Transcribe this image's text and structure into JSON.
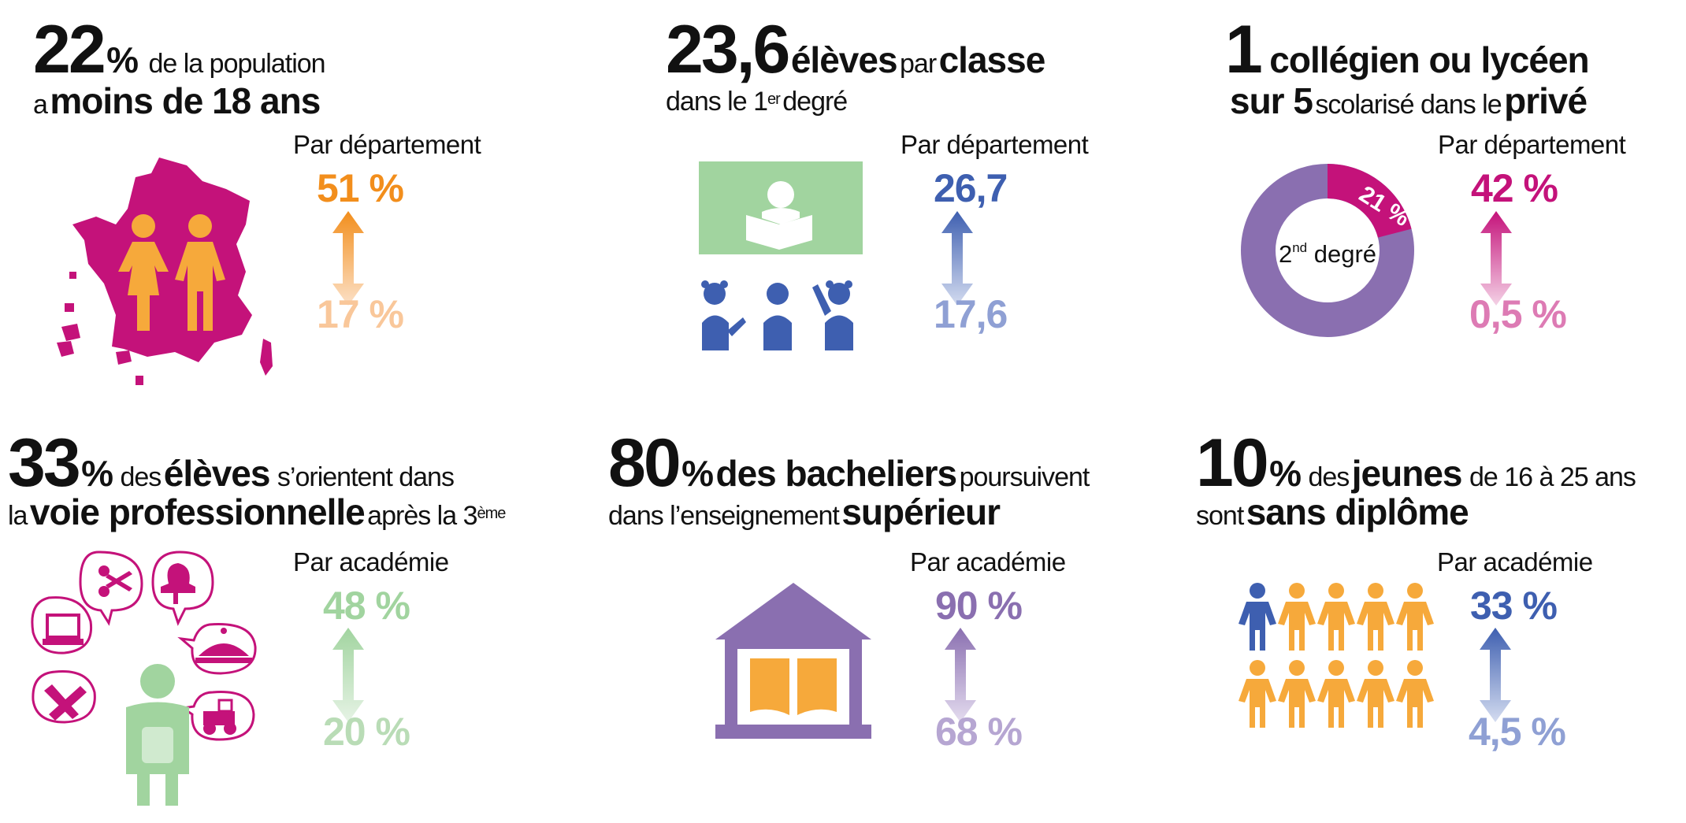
{
  "colors": {
    "magenta": "#c4127a",
    "magenta_light": "#dd7bb4",
    "orange": "#f28e1c",
    "orange_light": "#f9c79a",
    "blue": "#3e5fb0",
    "blue_light": "#8fa0d4",
    "green": "#a1d49f",
    "green_light": "#b9dcb6",
    "purple": "#8a6fb0",
    "purple_light": "#b6a6d2",
    "person_orange": "#f6a93b"
  },
  "panels": [
    {
      "id": "population",
      "headline": {
        "big": "22",
        "pct": "%",
        "rest1": "de la population",
        "line2_pre": "a",
        "line2_bold": "moins de 18 ans"
      },
      "range_label": "Par département",
      "high": "51 %",
      "low": "17 %",
      "icon": "france-map-children-icon"
    },
    {
      "id": "classe",
      "headline": {
        "big": "23,6",
        "b1": "élèves",
        "n1": "par",
        "b2": "classe",
        "line2_pre": "dans le 1",
        "line2_sup": "er",
        "line2_post": "degré"
      },
      "range_label": "Par département",
      "high": "26,7",
      "low": "17,6",
      "icon": "classroom-icon"
    },
    {
      "id": "prive",
      "headline": {
        "big": "1",
        "b1": "collégien ou lycéen",
        "line2_bold": "sur 5",
        "line2_norm": "scolarisé dans le",
        "line2_bold2": "privé"
      },
      "range_label": "Par département",
      "high": "42 %",
      "low": "0,5 %",
      "donut": {
        "slice_label": "21 %",
        "slice_fraction": 0.21,
        "center_pre": "2",
        "center_sup": "nd",
        "center_post": "degré"
      }
    },
    {
      "id": "pro",
      "headline": {
        "big": "33",
        "pct": "%",
        "n1": "des",
        "b1": "élèves",
        "n2": "s’orientent dans",
        "line2_pre": "la",
        "line2_bold": "voie professionnelle",
        "line2_norm": "après la 3",
        "line2_sup": "ème"
      },
      "range_label": "Par académie",
      "high": "48 %",
      "low": "20 %",
      "icon": "student-career-bubbles-icon"
    },
    {
      "id": "sup",
      "headline": {
        "big": "80",
        "pct": "%",
        "b1": "des bacheliers",
        "n1": "poursuivent",
        "line2_norm": "dans l’enseignement",
        "line2_bold": "supérieur"
      },
      "range_label": "Par académie",
      "high": "90 %",
      "low": "68 %",
      "icon": "university-book-icon"
    },
    {
      "id": "diplome",
      "headline": {
        "big": "10",
        "pct": "%",
        "n1": "des",
        "b1": "jeunes",
        "n2": "de 16 à 25 ans",
        "line2_norm": "sont",
        "line2_bold": "sans diplôme"
      },
      "range_label": "Par académie",
      "high": "33 %",
      "low": "4,5 %",
      "icon": "people-group-icon"
    }
  ]
}
